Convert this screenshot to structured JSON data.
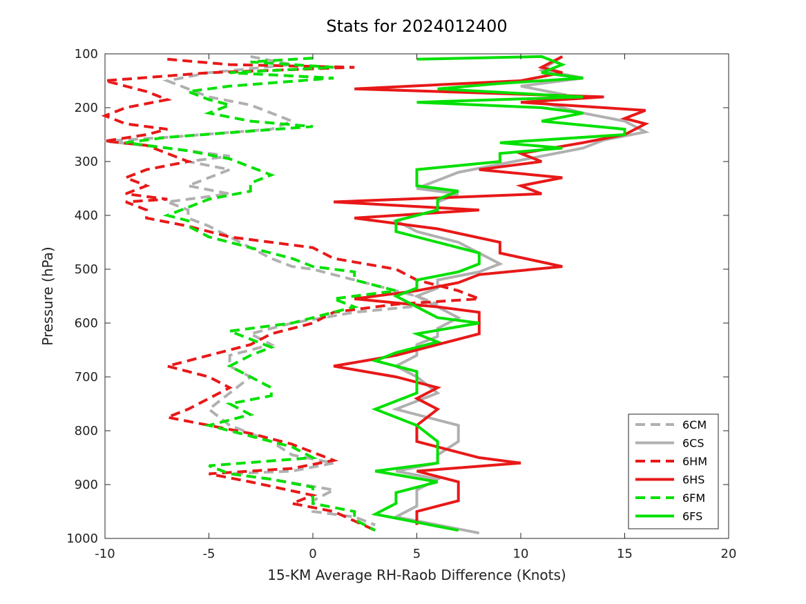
{
  "chart_data": {
    "type": "line",
    "title": "Stats for 2024012400",
    "xlabel": "15-KM Average RH-Raob Difference (Knots)",
    "ylabel": "Pressure (hPa)",
    "xlim": [
      -10,
      20
    ],
    "ylim": [
      1000,
      100
    ],
    "y_inverted": true,
    "x_ticks": [
      -10,
      -5,
      0,
      5,
      10,
      15,
      20
    ],
    "y_ticks": [
      100,
      200,
      300,
      400,
      500,
      600,
      700,
      800,
      900,
      1000
    ],
    "grid": false,
    "legend_position": "bottom-right",
    "series": [
      {
        "name": "6CM",
        "color": "#b0b0b0",
        "dash": "dashed",
        "points": [
          [
            -3,
            105
          ],
          [
            -1,
            120
          ],
          [
            -5,
            135
          ],
          [
            -7,
            150
          ],
          [
            -6,
            165
          ],
          [
            -5,
            180
          ],
          [
            -3,
            195
          ],
          [
            -2,
            210
          ],
          [
            -1,
            225
          ],
          [
            -2,
            240
          ],
          [
            -7,
            255
          ],
          [
            -10,
            262
          ],
          [
            -7,
            275
          ],
          [
            -4,
            290
          ],
          [
            -6,
            300
          ],
          [
            -4,
            315
          ],
          [
            -5,
            330
          ],
          [
            -6,
            345
          ],
          [
            -4,
            360
          ],
          [
            -7,
            375
          ],
          [
            -6,
            390
          ],
          [
            -6,
            405
          ],
          [
            -5,
            420
          ],
          [
            -4,
            440
          ],
          [
            -3,
            460
          ],
          [
            -2,
            480
          ],
          [
            -1,
            495
          ],
          [
            0,
            500
          ],
          [
            3,
            530
          ],
          [
            5,
            550
          ],
          [
            6,
            565
          ],
          [
            2,
            580
          ],
          [
            -1,
            600
          ],
          [
            -3,
            620
          ],
          [
            -2,
            640
          ],
          [
            -4,
            660
          ],
          [
            -4,
            680
          ],
          [
            -3,
            700
          ],
          [
            -4,
            730
          ],
          [
            -5,
            760
          ],
          [
            -4,
            790
          ],
          [
            -2,
            820
          ],
          [
            -1,
            845
          ],
          [
            1,
            860
          ],
          [
            -1,
            875
          ],
          [
            -4,
            880
          ],
          [
            -2,
            890
          ],
          [
            1,
            910
          ],
          [
            0,
            930
          ],
          [
            0,
            950
          ],
          [
            2,
            960
          ],
          [
            3,
            975
          ]
        ]
      },
      {
        "name": "6CS",
        "color": "#b0b0b0",
        "dash": "solid",
        "points": [
          [
            12,
            105
          ],
          [
            11,
            130
          ],
          [
            13,
            145
          ],
          [
            10,
            160
          ],
          [
            12,
            175
          ],
          [
            11,
            190
          ],
          [
            13,
            210
          ],
          [
            15,
            225
          ],
          [
            16,
            245
          ],
          [
            14,
            260
          ],
          [
            13,
            275
          ],
          [
            11,
            290
          ],
          [
            9,
            305
          ],
          [
            7,
            320
          ],
          [
            6,
            335
          ],
          [
            5,
            350
          ],
          [
            7,
            360
          ],
          [
            6,
            375
          ],
          [
            6,
            390
          ],
          [
            4,
            410
          ],
          [
            5,
            430
          ],
          [
            7,
            450
          ],
          [
            8,
            470
          ],
          [
            9,
            490
          ],
          [
            8,
            505
          ],
          [
            6,
            520
          ],
          [
            6,
            535
          ],
          [
            5,
            550
          ],
          [
            6,
            570
          ],
          [
            7,
            590
          ],
          [
            6,
            610
          ],
          [
            6,
            625
          ],
          [
            5,
            640
          ],
          [
            5,
            660
          ],
          [
            4,
            680
          ],
          [
            5,
            700
          ],
          [
            6,
            730
          ],
          [
            4,
            760
          ],
          [
            7,
            790
          ],
          [
            7,
            820
          ],
          [
            6,
            845
          ],
          [
            6,
            860
          ],
          [
            4,
            875
          ],
          [
            6,
            890
          ],
          [
            5,
            910
          ],
          [
            5,
            940
          ],
          [
            4,
            960
          ],
          [
            8,
            990
          ]
        ]
      },
      {
        "name": "6HM",
        "color": "#e81818",
        "dash": "dashed",
        "points": [
          [
            -7,
            110
          ],
          [
            -4,
            120
          ],
          [
            2,
            125
          ],
          [
            -5,
            135
          ],
          [
            -10,
            150
          ],
          [
            -8,
            170
          ],
          [
            -7,
            185
          ],
          [
            -9,
            200
          ],
          [
            -10,
            215
          ],
          [
            -9,
            230
          ],
          [
            -7,
            240
          ],
          [
            -8,
            250
          ],
          [
            -10,
            262
          ],
          [
            -8,
            270
          ],
          [
            -7,
            285
          ],
          [
            -6,
            300
          ],
          [
            -8,
            315
          ],
          [
            -9,
            330
          ],
          [
            -8,
            345
          ],
          [
            -9,
            360
          ],
          [
            -7,
            370
          ],
          [
            -9,
            375
          ],
          [
            -8,
            390
          ],
          [
            -8,
            405
          ],
          [
            -6,
            420
          ],
          [
            -4,
            440
          ],
          [
            0,
            460
          ],
          [
            1,
            480
          ],
          [
            4,
            500
          ],
          [
            5,
            520
          ],
          [
            7,
            540
          ],
          [
            8,
            555
          ],
          [
            4,
            565
          ],
          [
            1,
            580
          ],
          [
            0,
            600
          ],
          [
            -2,
            620
          ],
          [
            -3,
            640
          ],
          [
            -5,
            660
          ],
          [
            -7,
            680
          ],
          [
            -5,
            700
          ],
          [
            -4,
            720
          ],
          [
            -5,
            740
          ],
          [
            -6,
            760
          ],
          [
            -7,
            775
          ],
          [
            -5,
            790
          ],
          [
            -3,
            805
          ],
          [
            -1,
            825
          ],
          [
            0,
            840
          ],
          [
            1,
            855
          ],
          [
            -1,
            870
          ],
          [
            -5,
            880
          ],
          [
            -3,
            895
          ],
          [
            0,
            920
          ],
          [
            -1,
            935
          ],
          [
            1,
            950
          ],
          [
            3,
            985
          ]
        ]
      },
      {
        "name": "6HS",
        "color": "#e81818",
        "dash": "solid",
        "points": [
          [
            12,
            105
          ],
          [
            11,
            125
          ],
          [
            12,
            135
          ],
          [
            10,
            150
          ],
          [
            2,
            165
          ],
          [
            14,
            180
          ],
          [
            10,
            190
          ],
          [
            16,
            205
          ],
          [
            15,
            220
          ],
          [
            16,
            230
          ],
          [
            15,
            250
          ],
          [
            13,
            265
          ],
          [
            10,
            285
          ],
          [
            11,
            300
          ],
          [
            8,
            315
          ],
          [
            12,
            330
          ],
          [
            10,
            345
          ],
          [
            11,
            360
          ],
          [
            1,
            375
          ],
          [
            8,
            390
          ],
          [
            2,
            405
          ],
          [
            6,
            425
          ],
          [
            9,
            450
          ],
          [
            9,
            470
          ],
          [
            12,
            495
          ],
          [
            8,
            510
          ],
          [
            7,
            525
          ],
          [
            5,
            540
          ],
          [
            2,
            555
          ],
          [
            6,
            570
          ],
          [
            8,
            580
          ],
          [
            8,
            600
          ],
          [
            8,
            620
          ],
          [
            6,
            640
          ],
          [
            4,
            660
          ],
          [
            1,
            680
          ],
          [
            4,
            700
          ],
          [
            6,
            720
          ],
          [
            5,
            740
          ],
          [
            6,
            760
          ],
          [
            5,
            790
          ],
          [
            5,
            820
          ],
          [
            8,
            850
          ],
          [
            10,
            860
          ],
          [
            5,
            875
          ],
          [
            7,
            895
          ],
          [
            7,
            910
          ],
          [
            7,
            930
          ],
          [
            5,
            950
          ],
          [
            5,
            975
          ]
        ]
      },
      {
        "name": "6FM",
        "color": "#00e000",
        "dash": "dashed",
        "points": [
          [
            0,
            108
          ],
          [
            -3,
            115
          ],
          [
            1,
            125
          ],
          [
            -4,
            135
          ],
          [
            1,
            145
          ],
          [
            -4,
            160
          ],
          [
            -6,
            170
          ],
          [
            -5,
            185
          ],
          [
            -4,
            195
          ],
          [
            -5,
            210
          ],
          [
            -3,
            225
          ],
          [
            0,
            235
          ],
          [
            -7,
            255
          ],
          [
            -9,
            265
          ],
          [
            -6,
            280
          ],
          [
            -4,
            295
          ],
          [
            -3,
            310
          ],
          [
            -2,
            325
          ],
          [
            -3,
            340
          ],
          [
            -3,
            355
          ],
          [
            -5,
            370
          ],
          [
            -6,
            385
          ],
          [
            -7,
            400
          ],
          [
            -6,
            410
          ],
          [
            -6,
            420
          ],
          [
            -5,
            440
          ],
          [
            -3,
            460
          ],
          [
            -1,
            480
          ],
          [
            0,
            495
          ],
          [
            2,
            505
          ],
          [
            2,
            520
          ],
          [
            4,
            540
          ],
          [
            1,
            555
          ],
          [
            2,
            570
          ],
          [
            -1,
            600
          ],
          [
            -4,
            615
          ],
          [
            -3,
            630
          ],
          [
            -2,
            645
          ],
          [
            -3,
            660
          ],
          [
            -4,
            680
          ],
          [
            -3,
            700
          ],
          [
            -2,
            720
          ],
          [
            -2,
            735
          ],
          [
            -4,
            750
          ],
          [
            -3,
            770
          ],
          [
            -5,
            790
          ],
          [
            -3,
            810
          ],
          [
            -1,
            830
          ],
          [
            0,
            850
          ],
          [
            -5,
            865
          ],
          [
            -4,
            880
          ],
          [
            -2,
            890
          ],
          [
            0,
            905
          ],
          [
            0,
            935
          ],
          [
            2,
            950
          ],
          [
            2,
            965
          ],
          [
            3,
            985
          ]
        ]
      },
      {
        "name": "6FS",
        "color": "#00e000",
        "dash": "solid",
        "points": [
          [
            5,
            110
          ],
          [
            11,
            105
          ],
          [
            12,
            120
          ],
          [
            11,
            135
          ],
          [
            13,
            145
          ],
          [
            9,
            155
          ],
          [
            6,
            165
          ],
          [
            13,
            180
          ],
          [
            5,
            190
          ],
          [
            11,
            200
          ],
          [
            13,
            210
          ],
          [
            11,
            225
          ],
          [
            15,
            240
          ],
          [
            15,
            250
          ],
          [
            9,
            265
          ],
          [
            12,
            275
          ],
          [
            9,
            285
          ],
          [
            9,
            300
          ],
          [
            5,
            315
          ],
          [
            5,
            330
          ],
          [
            5,
            345
          ],
          [
            7,
            355
          ],
          [
            6,
            370
          ],
          [
            6,
            390
          ],
          [
            4,
            410
          ],
          [
            4,
            430
          ],
          [
            6,
            450
          ],
          [
            8,
            470
          ],
          [
            8,
            490
          ],
          [
            7,
            505
          ],
          [
            5,
            520
          ],
          [
            5,
            535
          ],
          [
            4,
            550
          ],
          [
            5,
            570
          ],
          [
            6,
            590
          ],
          [
            8,
            600
          ],
          [
            5,
            620
          ],
          [
            6,
            635
          ],
          [
            4,
            655
          ],
          [
            3,
            670
          ],
          [
            5,
            690
          ],
          [
            5,
            710
          ],
          [
            5,
            730
          ],
          [
            3,
            760
          ],
          [
            5,
            790
          ],
          [
            6,
            820
          ],
          [
            6,
            845
          ],
          [
            6,
            860
          ],
          [
            3,
            875
          ],
          [
            6,
            895
          ],
          [
            4,
            915
          ],
          [
            4,
            935
          ],
          [
            3,
            955
          ],
          [
            7,
            985
          ]
        ]
      }
    ]
  }
}
